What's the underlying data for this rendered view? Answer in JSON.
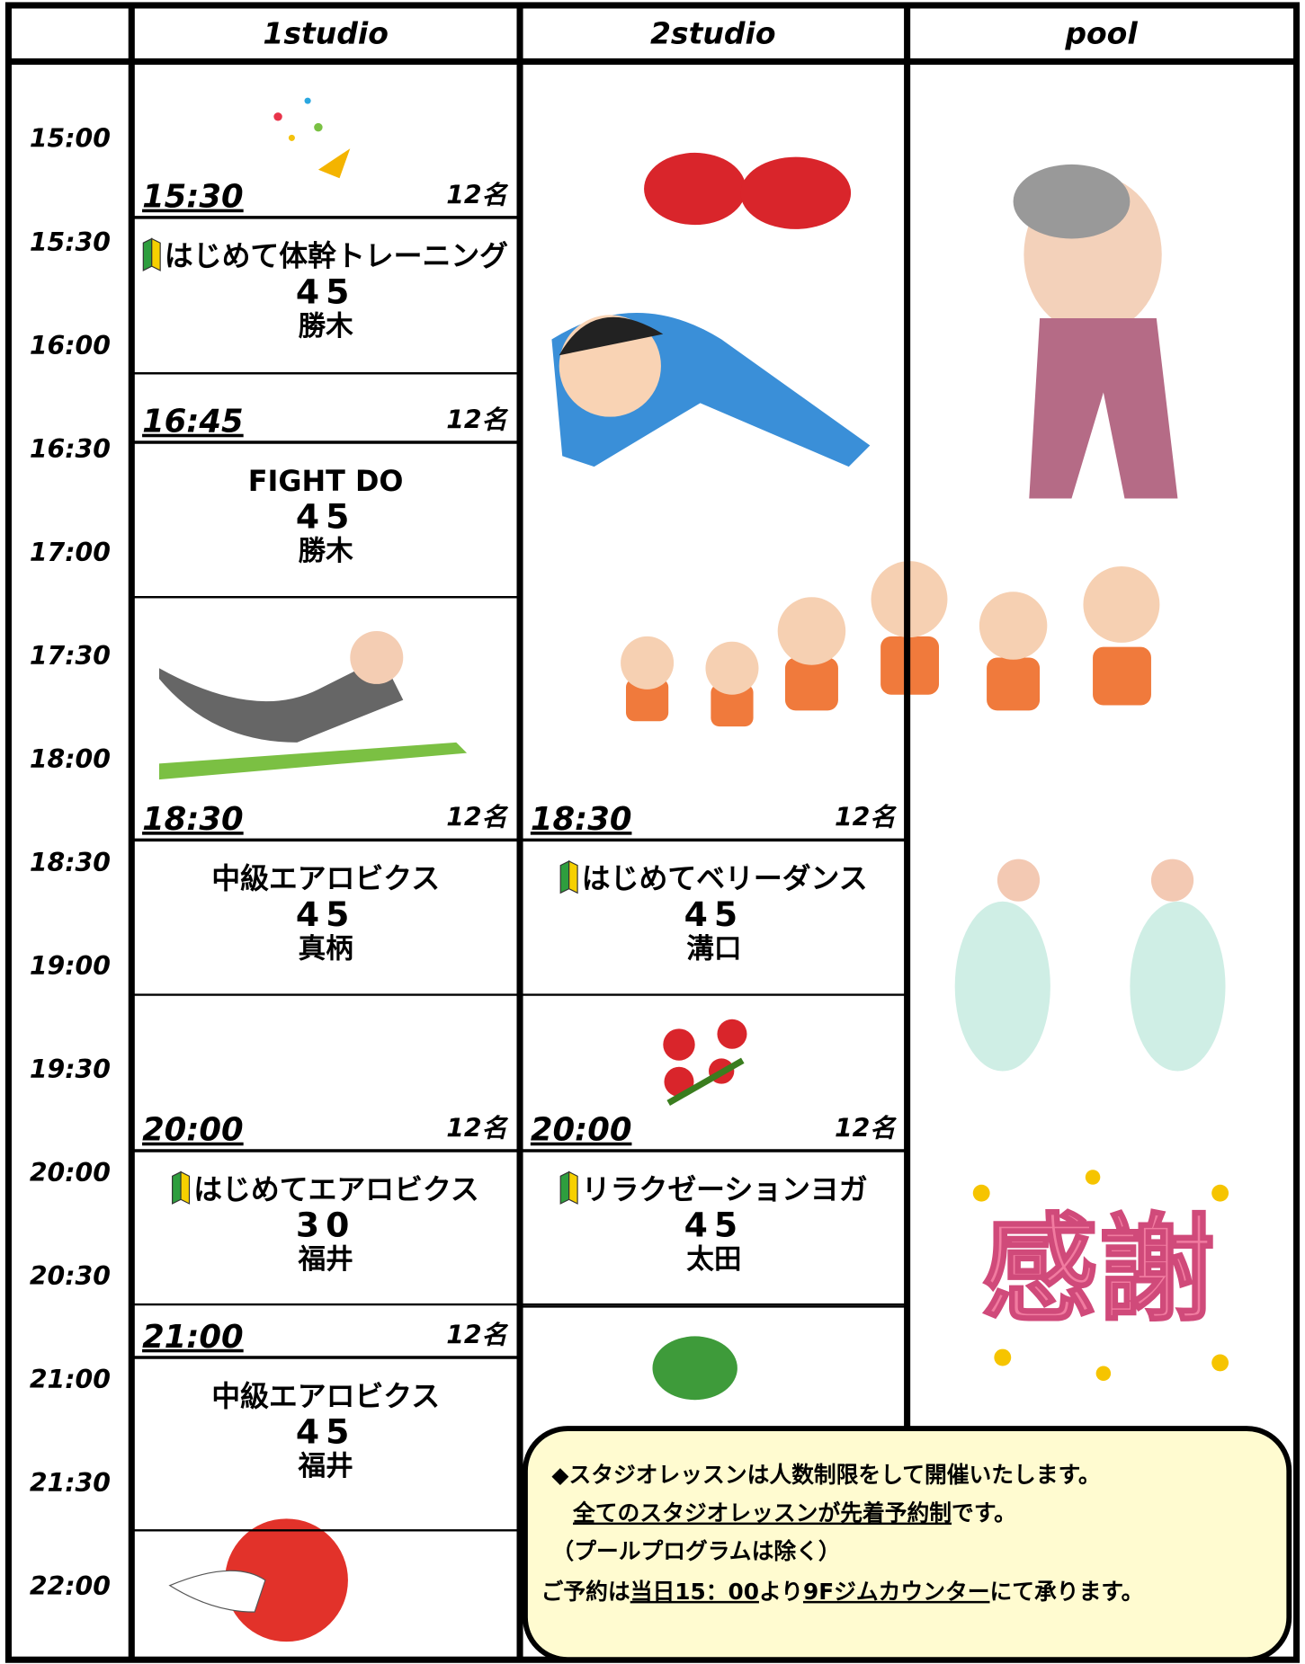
{
  "header": {
    "columns": [
      "1studio",
      "2studio",
      "pool"
    ]
  },
  "times": [
    "15:00",
    "15:30",
    "16:00",
    "16:30",
    "17:00",
    "17:30",
    "18:00",
    "18:30",
    "19:00",
    "19:30",
    "20:00",
    "20:30",
    "21:00",
    "21:30",
    "22:00"
  ],
  "lessons": [
    {
      "start": "15:30",
      "capacity": "12名",
      "title": "はじめて体幹トレーニング",
      "duration": 45,
      "instructor": "勝木",
      "beginner": true
    },
    {
      "start": "16:45",
      "capacity": "12名",
      "title": "FIGHT DO",
      "duration": 45,
      "instructor": "勝木",
      "beginner": false
    },
    {
      "start": "18:30",
      "capacity": "12名",
      "title": "中級エアロビクス",
      "duration": 45,
      "instructor": "真柄",
      "beginner": false
    },
    {
      "start": "18:30",
      "capacity": "12名",
      "title": "はじめてベリーダンス",
      "duration": 45,
      "instructor": "溝口",
      "beginner": true
    },
    {
      "start": "20:00",
      "capacity": "12名",
      "title": "はじめてエアロビクス",
      "duration": 30,
      "instructor": "福井",
      "beginner": true
    },
    {
      "start": "20:00",
      "capacity": "12名",
      "title": "リラクゼーションヨガ",
      "duration": 45,
      "instructor": "太田",
      "beginner": true
    },
    {
      "start": "21:00",
      "capacity": "12名",
      "title": "中級エアロビクス",
      "duration": 45,
      "instructor": "福井",
      "beginner": false
    }
  ],
  "notice": [
    [
      {
        "text": "◆スタジオレッスンは人数制限をして開催いたします。",
        "underline": false
      }
    ],
    [
      {
        "text": "全てのスタジオレッスンが先着予約制",
        "underline": true
      },
      {
        "text": "です。",
        "underline": false
      }
    ],
    [
      {
        "text": "（プールプログラムは除く）",
        "underline": false
      }
    ],
    [
      {
        "text": "ご予約は",
        "underline": false
      },
      {
        "text": "当日15：00",
        "underline": true
      },
      {
        "text": "より",
        "underline": false
      },
      {
        "text": "9Fジムカウンター",
        "underline": true
      },
      {
        "text": "にて承ります。",
        "underline": false
      }
    ]
  ]
}
